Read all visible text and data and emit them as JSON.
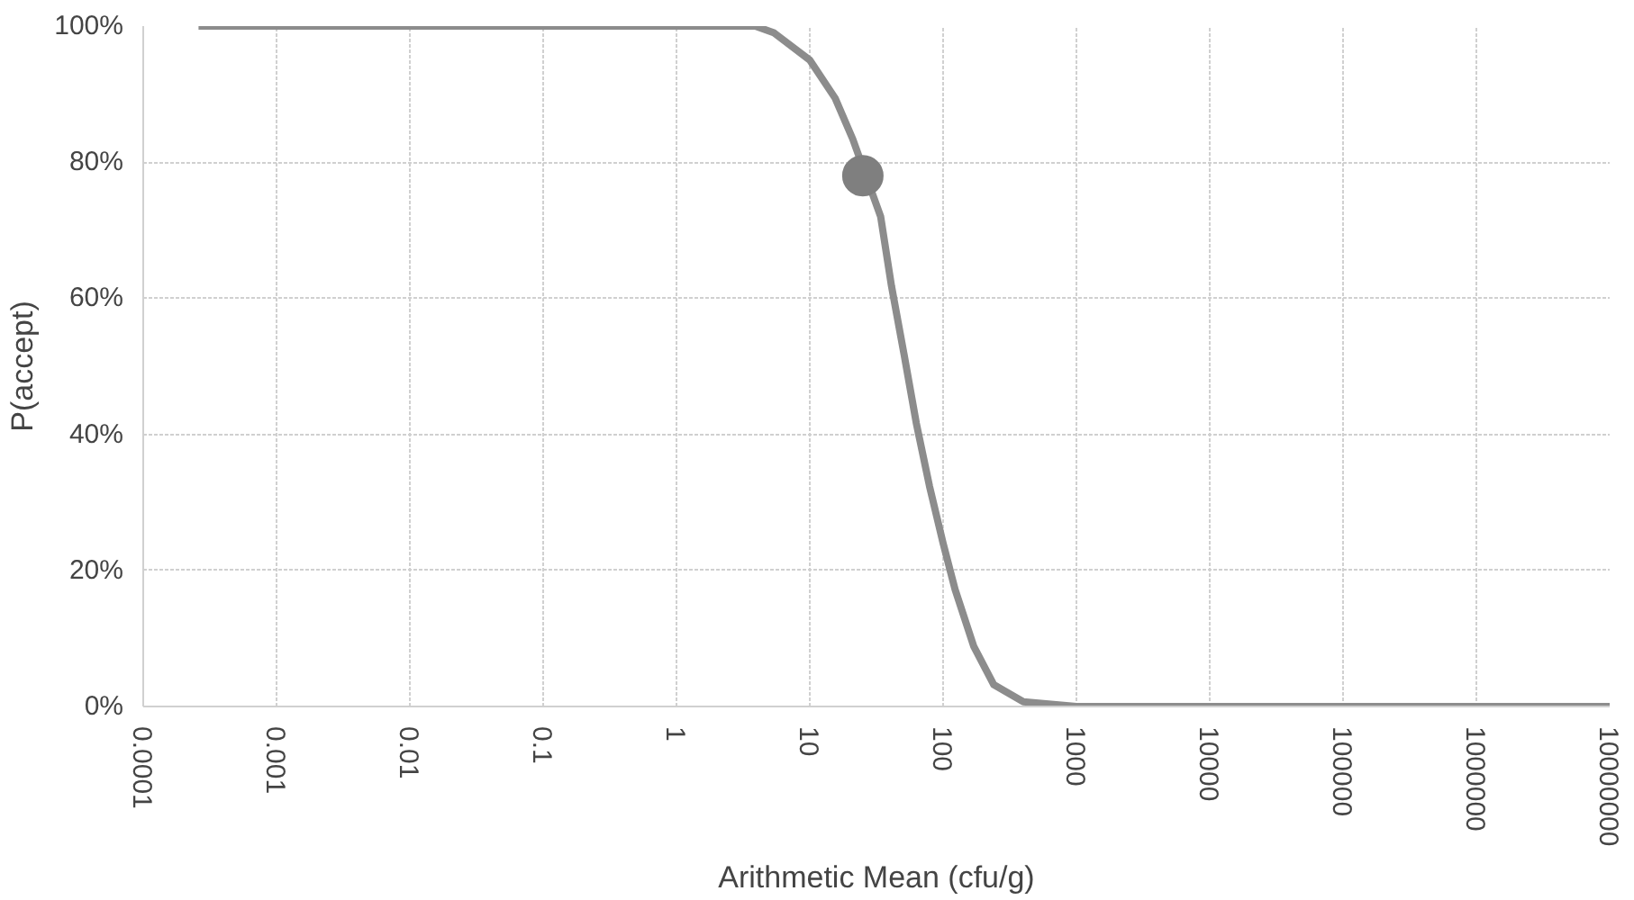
{
  "chart_data": {
    "type": "line",
    "xlabel": "Arithmetic Mean (cfu/g)",
    "ylabel": "P(accept)",
    "log": "x",
    "grid": true,
    "xlim": [
      0.0001,
      10000000
    ],
    "ylim": [
      0,
      100
    ],
    "xticks": [
      {
        "value": 0.0001,
        "label": "0.0001"
      },
      {
        "value": 0.001,
        "label": "0.001"
      },
      {
        "value": 0.01,
        "label": "0.01"
      },
      {
        "value": 0.1,
        "label": "0.1"
      },
      {
        "value": 1,
        "label": "1"
      },
      {
        "value": 10,
        "label": "10"
      },
      {
        "value": 100,
        "label": "100"
      },
      {
        "value": 1000,
        "label": "1000"
      },
      {
        "value": 10000,
        "label": "10000"
      },
      {
        "value": 100000,
        "label": "100000"
      },
      {
        "value": 1000000,
        "label": "1000000"
      },
      {
        "value": 10000000,
        "label": "10000000"
      }
    ],
    "yticks": [
      {
        "value": 0,
        "label": "0%"
      },
      {
        "value": 20,
        "label": "20%"
      },
      {
        "value": 40,
        "label": "40%"
      },
      {
        "value": 60,
        "label": "60%"
      },
      {
        "value": 80,
        "label": "80%"
      },
      {
        "value": 100,
        "label": "100%"
      }
    ],
    "series": [
      {
        "color": "#8c8c8c",
        "marker": "none",
        "line_style": "solid",
        "x": [
          0.00026,
          0.01,
          1,
          3.9,
          5.4,
          10,
          15.5,
          21,
          34,
          41,
          51,
          63,
          79,
          100,
          123,
          170,
          240,
          400,
          1000,
          100000,
          10000000
        ],
        "values": [
          100,
          100,
          100,
          100,
          99,
          95,
          89.4,
          83.4,
          72,
          61.8,
          51.7,
          41.6,
          32.4,
          24,
          17.2,
          8.8,
          3.2,
          0.7,
          0,
          0,
          0
        ]
      },
      {
        "type": "scatter",
        "color": "#7f7f7f",
        "marker": "circle",
        "x": [
          25
        ],
        "values": [
          78
        ]
      }
    ]
  }
}
